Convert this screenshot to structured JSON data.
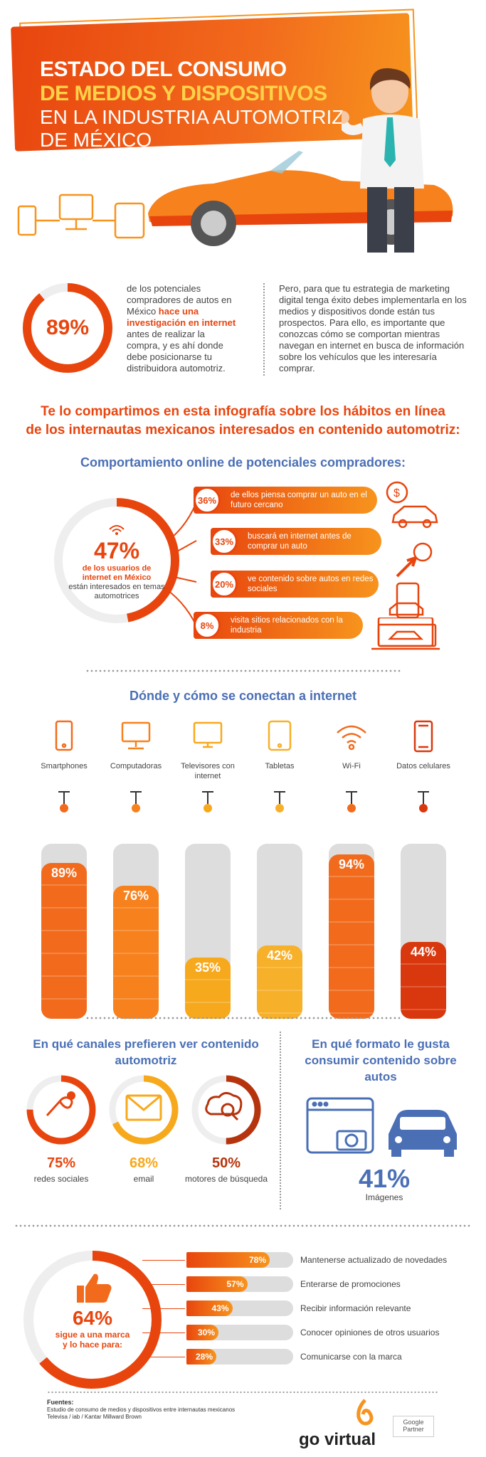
{
  "header": {
    "line1": "ESTADO DEL CONSUMO",
    "line2": "DE MEDIOS Y DISPOSITIVOS",
    "line3": "EN LA INDUSTRIA AUTOMOTRIZ",
    "line4": "DE MÉXICO"
  },
  "intro": {
    "stat": "89%",
    "left_pre": "de los potenciales compradores de autos en México ",
    "left_hl": "hace una investigación en internet",
    "left_post": " antes de realizar la compra, y es ahí donde debe posicionarse tu distribuidora automotriz.",
    "right": "Pero, para que tu estrategia de marketing digital tenga éxito debes implementarla en los medios y dispositivos donde están tus prospectos. Para ello, es importante que conozcas cómo se comportan mientras navegan en internet en busca de información sobre los vehículos que les interesaría comprar.",
    "share_line1": "Te lo compartimos en esta infografía sobre los hábitos en línea",
    "share_line2": "de los internautas mexicanos interesados en contenido automotriz:"
  },
  "behavior": {
    "title": "Comportamiento online de potenciales compradores:",
    "stat": "47%",
    "stat_hl": "de los usuarios de internet en México",
    "stat_rest": "están interesados en temas automotrices",
    "value_fraction": 0.47,
    "items": [
      {
        "pct": "36%",
        "text": "de ellos piensa comprar un auto en el futuro cercano",
        "icon": "car-dollar-icon"
      },
      {
        "pct": "33%",
        "text": "buscará en internet antes de comprar un auto",
        "icon": "cursor-click-icon"
      },
      {
        "pct": "20%",
        "text": "ve contenido sobre autos en redes sociales",
        "icon": "phone-car-icon"
      },
      {
        "pct": "8%",
        "text": "visita sitios relacionados con la industria",
        "icon": "laptop-car-icon"
      }
    ]
  },
  "connect": {
    "title": "Dónde y cómo se conectan a internet"
  },
  "chart_data": {
    "type": "bar",
    "title": "Dónde y cómo se conectan a internet",
    "categories": [
      "Smartphones",
      "Computadoras",
      "Televisores con internet",
      "Tabletas",
      "Wi-Fi",
      "Datos celulares"
    ],
    "values": [
      89,
      76,
      35,
      42,
      94,
      44
    ],
    "value_labels": [
      "89%",
      "76%",
      "35%",
      "42%",
      "94%",
      "44%"
    ],
    "ylim": [
      0,
      100
    ],
    "colors": [
      "#f26b1d",
      "#f7811d",
      "#f7a91d",
      "#f7b02a",
      "#f26b1d",
      "#d9380e"
    ],
    "icons": [
      "smartphone-icon",
      "computer-icon",
      "tv-icon",
      "tablet-icon",
      "wifi-icon",
      "cellular-data-icon"
    ]
  },
  "channels": {
    "title": "En qué canales prefieren ver contenido automotriz",
    "items": [
      {
        "pct": "75%",
        "label": "redes sociales",
        "fraction": 0.75,
        "color": "#e8450e",
        "icon": "social-bird-icon"
      },
      {
        "pct": "68%",
        "label": "email",
        "fraction": 0.68,
        "color": "#f7a91d",
        "icon": "email-icon"
      },
      {
        "pct": "50%",
        "label": "motores de búsqueda",
        "fraction": 0.5,
        "color": "#b5340d",
        "icon": "search-cloud-icon"
      }
    ]
  },
  "format": {
    "title": "En qué formato le gusta consumir contenido sobre autos",
    "pct": "41%",
    "label": "Imágenes"
  },
  "follow": {
    "stat": "64%",
    "caption1": "sigue a una marca",
    "caption2": "y lo hace para:",
    "fraction": 0.64,
    "reasons": [
      {
        "pct": "78%",
        "value": 78,
        "label": "Mantenerse actualizado de novedades"
      },
      {
        "pct": "57%",
        "value": 57,
        "label": "Enterarse de promociones"
      },
      {
        "pct": "43%",
        "value": 43,
        "label": "Recibir información relevante"
      },
      {
        "pct": "30%",
        "value": 30,
        "label": "Conocer opiniones de otros usuarios"
      },
      {
        "pct": "28%",
        "value": 28,
        "label": "Comunicarse con la marca"
      }
    ]
  },
  "footer": {
    "sources_title": "Fuentes:",
    "source1": "Estudio de consumo de medios y dispositivos entre internautas mexicanos",
    "source2": "Televisa / iab / Kantar Millward Brown",
    "logo": "go virtual",
    "partner": "Google Partner"
  },
  "colors": {
    "orange": "#e8450e",
    "amber": "#f7941d",
    "blue": "#4a6fb5"
  }
}
